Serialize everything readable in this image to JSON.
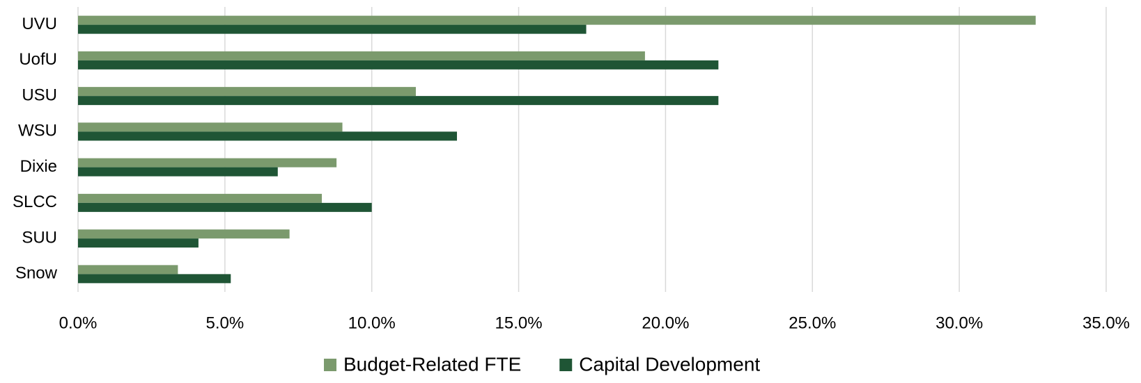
{
  "chart_data": {
    "type": "hbar",
    "categories": [
      "UVU",
      "UofU",
      "USU",
      "WSU",
      "Dixie",
      "SLCC",
      "SUU",
      "Snow"
    ],
    "series": [
      {
        "name": "Budget-Related FTE",
        "color": "#7b9a6d",
        "values": [
          32.6,
          19.3,
          11.5,
          9.0,
          8.8,
          8.3,
          7.2,
          3.4
        ]
      },
      {
        "name": "Capital Development",
        "color": "#1f5535",
        "values": [
          17.3,
          21.8,
          21.8,
          12.9,
          6.8,
          10.0,
          4.1,
          5.2
        ]
      }
    ],
    "xlim": [
      0,
      35
    ],
    "xticks": [
      {
        "value": 0,
        "label": "0.0%"
      },
      {
        "value": 5,
        "label": "5.0%"
      },
      {
        "value": 10,
        "label": "10.0%"
      },
      {
        "value": 15,
        "label": "15.0%"
      },
      {
        "value": 20,
        "label": "20.0%"
      },
      {
        "value": 25,
        "label": "25.0%"
      },
      {
        "value": 30,
        "label": "30.0%"
      },
      {
        "value": 35,
        "label": "35.0%"
      }
    ],
    "grid": true,
    "legend": "bottom"
  }
}
